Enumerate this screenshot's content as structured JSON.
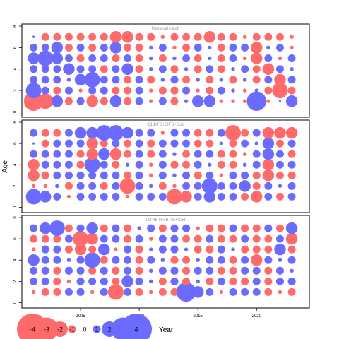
{
  "colors": {
    "positive": "#6b6bff",
    "negative": "#ff6b6b",
    "frame": "#000000",
    "title": "#999999"
  },
  "chart_data": {
    "type": "scatter",
    "subtype": "bubble residual plot",
    "ylabel": "Age",
    "xlabel": "Year",
    "x_ticks": [
      2005,
      2010,
      2015,
      2020
    ],
    "y_ticks": [
      0,
      2,
      4,
      6,
      8
    ],
    "xlim": [
      2000,
      2024.5
    ],
    "ylim": [
      -0.5,
      8.2
    ],
    "years": [
      2001,
      2002,
      2003,
      2004,
      2005,
      2006,
      2007,
      2008,
      2009,
      2010,
      2011,
      2012,
      2013,
      2014,
      2015,
      2016,
      2017,
      2018,
      2019,
      2020,
      2021,
      2022,
      2023
    ],
    "ages": [
      1,
      2,
      3,
      4,
      5,
      6,
      7
    ],
    "legend": {
      "values": [
        -4,
        -3,
        -2,
        -1,
        0,
        1,
        2,
        3,
        4
      ],
      "labels": [
        "-4",
        "-3",
        "-2",
        "-1",
        "0",
        "1",
        "2",
        "3",
        "4"
      ]
    },
    "panels": [
      {
        "title": "Residual catch",
        "rows": [
          [
            -2.5,
            -2,
            1.5,
            -1,
            1,
            -1.5,
            -1,
            1.5,
            -1,
            1,
            -0.5,
            1,
            -1,
            0.5,
            1.5,
            1.5,
            -0.5,
            -0.5,
            -0.5,
            2.5,
            -0.5,
            0.3,
            1.5
          ],
          [
            2,
            1,
            -1,
            1,
            -0.5,
            1,
            1,
            -1,
            -1,
            1,
            -0.5,
            -1,
            -1,
            1,
            -0.5,
            -1,
            1,
            0.5,
            -0.5,
            0.5,
            -1,
            -2,
            -1
          ],
          [
            1,
            1,
            1,
            0.5,
            1.5,
            2,
            1,
            1,
            -1,
            1,
            -1,
            0.5,
            1,
            -1,
            0.5,
            -1,
            0.5,
            -1,
            0.5,
            -1,
            1,
            -1.5,
            1
          ],
          [
            1,
            1,
            1,
            1.5,
            1,
            1,
            -1,
            1,
            1.5,
            -1,
            0.5,
            1,
            -1,
            0.5,
            -1,
            1,
            -1,
            0.5,
            1,
            -1,
            -1.5,
            1,
            0.5
          ],
          [
            1.5,
            2,
            1.5,
            1,
            -1,
            1,
            1,
            -1,
            1,
            -1,
            0.5,
            -1,
            0.5,
            1,
            -1,
            0.5,
            -1,
            1,
            -0.5,
            -1.5,
            1,
            -0.5,
            1
          ],
          [
            1,
            1,
            1.5,
            -1,
            1,
            -1,
            1,
            1.5,
            -1,
            -1,
            0.5,
            1,
            -0.5,
            -1,
            1,
            0.5,
            -1,
            1,
            1,
            -1.5,
            0.5,
            1,
            -0.5
          ],
          [
            0.3,
            -1,
            -1,
            -1,
            -1,
            -1,
            -1,
            -1.5,
            -1.5,
            -1,
            -1,
            -0.5,
            -1,
            -1,
            -1,
            -1.5,
            -1,
            -1,
            -0.5,
            -1,
            -1,
            -1,
            -0.5
          ]
        ]
      },
      {
        "title": "Q1IBTS+BITS+Cod",
        "rows": [
          [
            2,
            1.5,
            1,
            -0.5,
            1,
            1,
            1,
            1,
            -0.5,
            1,
            1,
            1,
            -2,
            -1.5,
            1,
            1.5,
            1,
            1,
            -1,
            -1.5,
            1,
            -1,
            1
          ],
          [
            -0.5,
            -0.5,
            0.5,
            -1,
            1,
            1,
            -1,
            1,
            -2,
            1,
            0.5,
            -1,
            -0.5,
            1,
            1,
            2,
            1,
            1,
            1.5,
            -1,
            1,
            0.5,
            1
          ],
          [
            -1.5,
            -1,
            1,
            1,
            1,
            1,
            1,
            1,
            -1,
            1,
            -0.5,
            1,
            0.5,
            1,
            -1,
            1,
            -0.5,
            1,
            1,
            -1,
            -1.5,
            -1,
            -1
          ],
          [
            -1.5,
            1,
            1,
            1,
            -1,
            2,
            1,
            -1,
            0.5,
            1,
            -0.5,
            1,
            -1,
            -1,
            1,
            0.5,
            -1,
            -1,
            0.5,
            1,
            -1.5,
            1,
            1
          ],
          [
            1,
            1,
            1,
            1,
            -1,
            -1.5,
            1.5,
            -1.5,
            -1,
            1,
            -1,
            1,
            0.5,
            -1,
            1,
            1,
            -1,
            -1,
            -0.5,
            1,
            1.5,
            1,
            -1
          ],
          [
            0.3,
            -1,
            1,
            1,
            1,
            -1.5,
            -1,
            1,
            -1,
            1,
            -1,
            1,
            1,
            1,
            -1,
            -1,
            0.5,
            -1,
            1,
            0.5,
            1.5,
            -1,
            1
          ],
          [
            1,
            -1,
            -1,
            1,
            1.5,
            1.5,
            2,
            2,
            1.5,
            1,
            1,
            -0.5,
            1,
            1,
            -1,
            -1,
            1,
            -2,
            -1,
            1,
            -1.5,
            -1.5,
            -1.5
          ]
        ]
      },
      {
        "title": "Q34IBTS+BITS+Cod",
        "rows": [
          [
            -0.5,
            -1,
            -1,
            1,
            1,
            -0.5,
            1,
            -2,
            1,
            -1,
            -0.5,
            -1,
            -1,
            2.5,
            1.5,
            1,
            -0.5,
            1,
            1,
            1,
            -1,
            -0.5,
            -1
          ],
          [
            1,
            1,
            -1,
            -0.5,
            1,
            1,
            1,
            -1,
            1.5,
            1,
            0.5,
            -1,
            1,
            -1,
            0.5,
            -1,
            1,
            -1,
            -1,
            1,
            -1,
            1,
            1
          ],
          [
            1,
            1,
            -1,
            1,
            1,
            -1,
            1,
            -1,
            1,
            -1,
            0.5,
            1,
            1,
            -1,
            1,
            1,
            -1,
            -1,
            1,
            1,
            -1,
            1,
            0.5
          ],
          [
            1.5,
            1,
            1,
            0.5,
            1,
            2,
            -1,
            1,
            1,
            -1,
            1,
            0.5,
            -1,
            -1,
            0.5,
            1,
            1,
            -1,
            1,
            -1.5,
            1,
            0.5,
            1
          ],
          [
            -0.5,
            1,
            1,
            -1,
            -1.5,
            -1,
            1.5,
            -0.5,
            1,
            -1,
            0.5,
            1,
            1,
            0.5,
            -1,
            -1,
            1,
            0.5,
            -1,
            -1,
            -1,
            1.5,
            -1
          ],
          [
            -1,
            -1,
            -1,
            1,
            -2,
            -1.5,
            1,
            1,
            -1,
            1,
            -0.5,
            1,
            1,
            -1,
            -1,
            1,
            -1,
            -1,
            1,
            -1,
            -1,
            1,
            -1.5
          ],
          [
            1,
            1.5,
            2,
            -1,
            1,
            1.5,
            -1,
            1,
            -1,
            0.5,
            1,
            -1,
            1,
            1,
            -0.5,
            -1,
            -1,
            1,
            -1,
            -1,
            1,
            -1,
            1.5
          ]
        ]
      }
    ]
  }
}
